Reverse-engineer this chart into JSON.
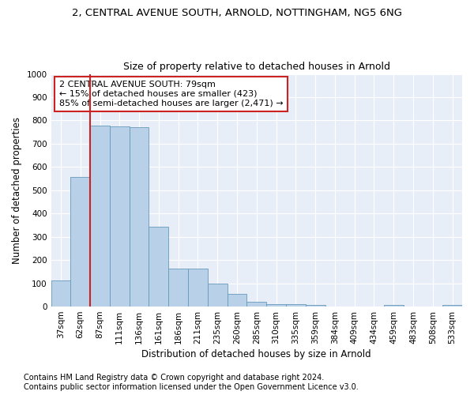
{
  "title1": "2, CENTRAL AVENUE SOUTH, ARNOLD, NOTTINGHAM, NG5 6NG",
  "title2": "Size of property relative to detached houses in Arnold",
  "xlabel": "Distribution of detached houses by size in Arnold",
  "ylabel": "Number of detached properties",
  "categories": [
    "37sqm",
    "62sqm",
    "87sqm",
    "111sqm",
    "136sqm",
    "161sqm",
    "186sqm",
    "211sqm",
    "235sqm",
    "260sqm",
    "285sqm",
    "310sqm",
    "335sqm",
    "359sqm",
    "384sqm",
    "409sqm",
    "434sqm",
    "459sqm",
    "483sqm",
    "508sqm",
    "533sqm"
  ],
  "values": [
    113,
    557,
    779,
    773,
    770,
    343,
    162,
    162,
    98,
    55,
    20,
    12,
    12,
    8,
    0,
    0,
    0,
    8,
    0,
    0,
    8
  ],
  "bar_color": "#b8d0e8",
  "bar_edge_color": "#6699bb",
  "vline_x": 2,
  "vline_color": "#cc2222",
  "annotation_text": "2 CENTRAL AVENUE SOUTH: 79sqm\n← 15% of detached houses are smaller (423)\n85% of semi-detached houses are larger (2,471) →",
  "annotation_box_edgecolor": "#cc2222",
  "ylim": [
    0,
    1000
  ],
  "yticks": [
    0,
    100,
    200,
    300,
    400,
    500,
    600,
    700,
    800,
    900,
    1000
  ],
  "footnote1": "Contains HM Land Registry data © Crown copyright and database right 2024.",
  "footnote2": "Contains public sector information licensed under the Open Government Licence v3.0.",
  "bg_color": "#e8eef8",
  "grid_color": "#ffffff",
  "title1_fontsize": 9.5,
  "title2_fontsize": 9,
  "axis_label_fontsize": 8.5,
  "tick_fontsize": 7.5,
  "annotation_fontsize": 8,
  "footnote_fontsize": 7
}
